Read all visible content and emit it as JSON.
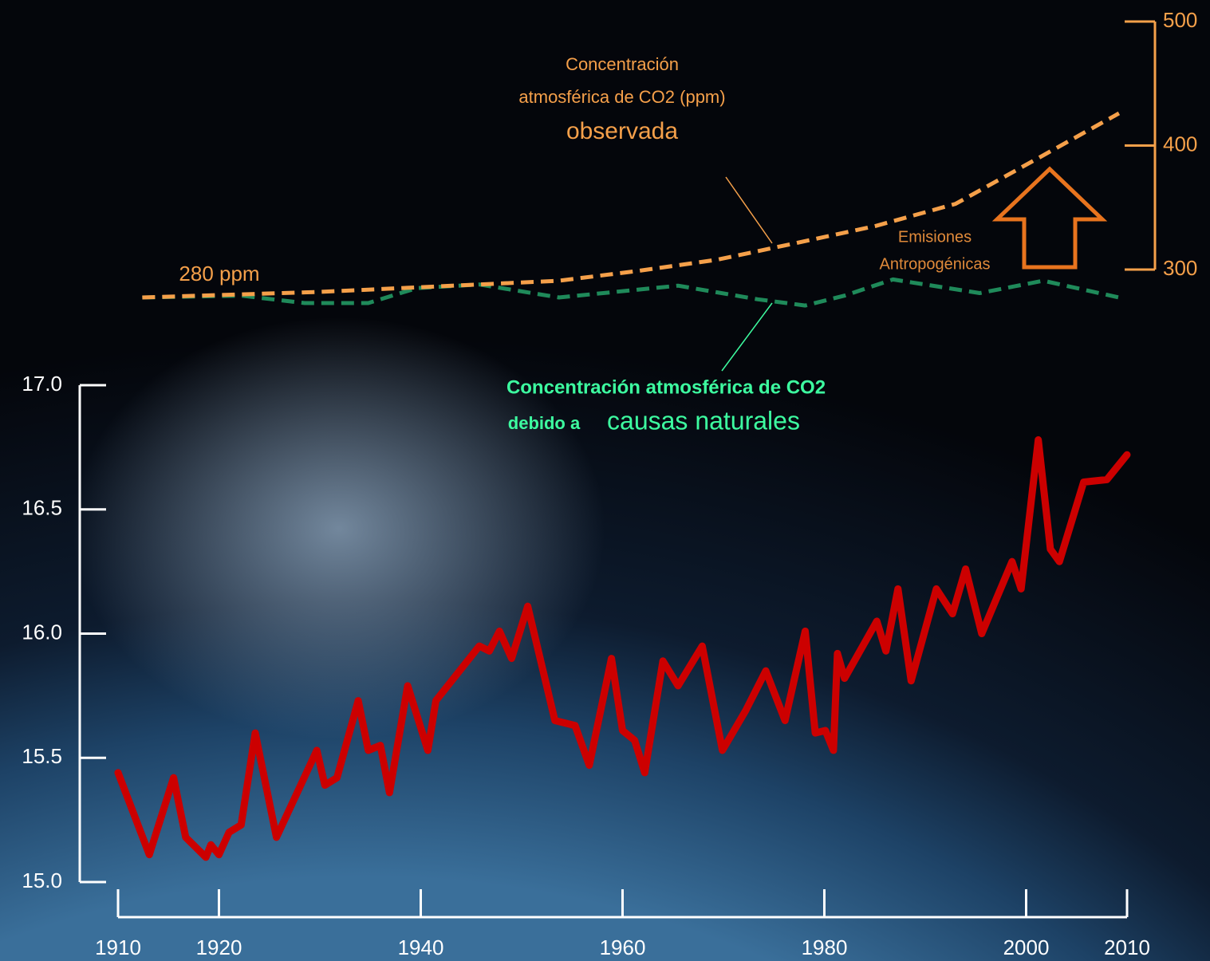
{
  "chart_data": {
    "type": "line",
    "xlim": [
      1910,
      2010
    ],
    "xticks": [
      1910,
      1920,
      1940,
      1960,
      1980,
      2000,
      2010
    ],
    "ylim": [
      15,
      17
    ],
    "yticks": [
      {
        "value": 15,
        "label": "15.0"
      },
      15.5,
      {
        "value": 16,
        "label": "16.0"
      },
      16.5,
      {
        "value": 17,
        "label": "17.0"
      }
    ],
    "y2lim": [
      300,
      500
    ],
    "y2ticks": [
      300,
      400,
      500
    ],
    "series": [
      {
        "color": "#cc0000",
        "x": [
          1910,
          1913.1,
          1915.5,
          1916.7,
          1918.7,
          1919.2,
          1920,
          1921,
          1922.2,
          1923.6,
          1925.7,
          1929.7,
          1930.5,
          1931.7,
          1933.8,
          1934.8,
          1936,
          1936.9,
          1938.7,
          1940.7,
          1941.5,
          1945.8,
          1946.8,
          1947.8,
          1949,
          1950.6,
          1953.3,
          1955.3,
          1956.7,
          1958.9,
          1960,
          1961.2,
          1962.2,
          1964,
          1965.5,
          1967.9,
          1969.9,
          1972.2,
          1974.2,
          1976.1,
          1978.1,
          1979.1,
          1980.1,
          1980.9,
          1981.3,
          1982,
          1985.2,
          1986.1,
          1987.3,
          1988.6,
          1991.1,
          1992.7,
          1994,
          1995.6,
          1998.6,
          1999.5,
          2001.2,
          2002.4,
          2003.3,
          2005.7,
          2008,
          2010
        ],
        "values": [
          15.44,
          15.11,
          15.42,
          15.18,
          15.1,
          15.15,
          15.11,
          15.2,
          15.23,
          15.6,
          15.18,
          15.53,
          15.39,
          15.42,
          15.73,
          15.53,
          15.55,
          15.36,
          15.79,
          15.53,
          15.73,
          15.95,
          15.93,
          16.01,
          15.9,
          16.11,
          15.65,
          15.63,
          15.47,
          15.9,
          15.61,
          15.57,
          15.44,
          15.89,
          15.79,
          15.95,
          15.53,
          15.69,
          15.85,
          15.65,
          16.01,
          15.6,
          15.61,
          15.53,
          15.92,
          15.82,
          16.05,
          15.93,
          16.18,
          15.81,
          16.18,
          16.08,
          16.26,
          16,
          16.29,
          16.18,
          16.78,
          16.34,
          16.29,
          16.61,
          16.62,
          16.72
        ]
      },
      {
        "color": "#f5a04a",
        "axis": "y2",
        "dashed": true,
        "x": [
          1912.4,
          1930,
          1945.8,
          1953.7,
          1961.6,
          1969.4,
          1977,
          1985,
          1993,
          2001,
          2009.2
        ],
        "values": [
          277.5,
          282,
          288,
          291,
          299,
          308,
          321,
          335,
          353,
          389,
          426
        ]
      },
      {
        "color": "#1f8a5a",
        "axis": "y2",
        "dashed": true,
        "x": [
          1912.4,
          1922.2,
          1928.5,
          1934.8,
          1939.6,
          1945.8,
          1953.7,
          1965.5,
          1973.4,
          1978.1,
          1982,
          1986.8,
          1995.4,
          2001.7,
          2009.2
        ],
        "values": [
          277.5,
          279,
          273,
          273,
          285,
          288,
          277.5,
          287,
          276,
          271,
          279,
          292,
          281,
          291,
          277.5
        ]
      }
    ],
    "annotations": {
      "start": "280 ppm",
      "observed": [
        "Concentración",
        "atmosférica de CO2 (ppm)",
        "observada"
      ],
      "emissions": [
        "Emisiones",
        "Antropogénicas"
      ],
      "natural": [
        "Concentración atmosférica de CO2",
        "debido a",
        "causas naturales"
      ]
    }
  }
}
